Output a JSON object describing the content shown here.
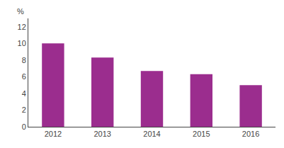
{
  "chart_data": {
    "type": "bar",
    "categories": [
      "2012",
      "2013",
      "2014",
      "2015",
      "2016"
    ],
    "values": [
      10.0,
      8.3,
      6.7,
      6.3,
      5.0
    ],
    "color": "#9b2d8e",
    "ylabel": "%",
    "ylim": [
      0,
      13
    ],
    "yticks": [
      0,
      2,
      4,
      6,
      8,
      10,
      12
    ],
    "grid": false
  }
}
